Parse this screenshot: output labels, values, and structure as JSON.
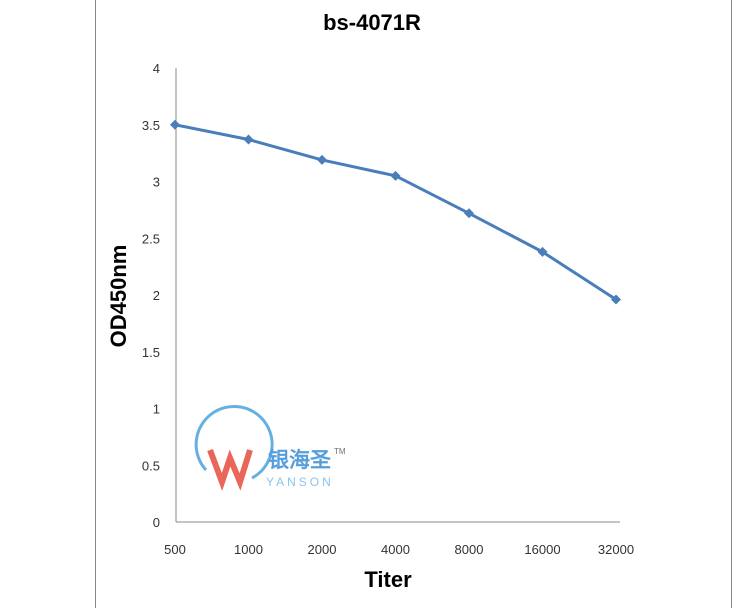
{
  "chart_data": {
    "type": "line",
    "title": "bs-4071R",
    "xlabel": "Titer",
    "ylabel": "OD450nm",
    "categories": [
      "500",
      "1000",
      "2000",
      "4000",
      "8000",
      "16000",
      "32000"
    ],
    "series": [
      {
        "name": "bs-4071R",
        "values": [
          3.5,
          3.37,
          3.19,
          3.05,
          2.72,
          2.38,
          1.96
        ],
        "color": "#4a7ebb"
      }
    ],
    "ylim": [
      0,
      4
    ],
    "yticks": [
      "0",
      "0.5",
      "1",
      "1.5",
      "2",
      "2.5",
      "3",
      "3.5",
      "4"
    ],
    "grid": false
  },
  "watermark": {
    "text": "银海圣",
    "sub": "YANSON",
    "tm": "TM"
  }
}
